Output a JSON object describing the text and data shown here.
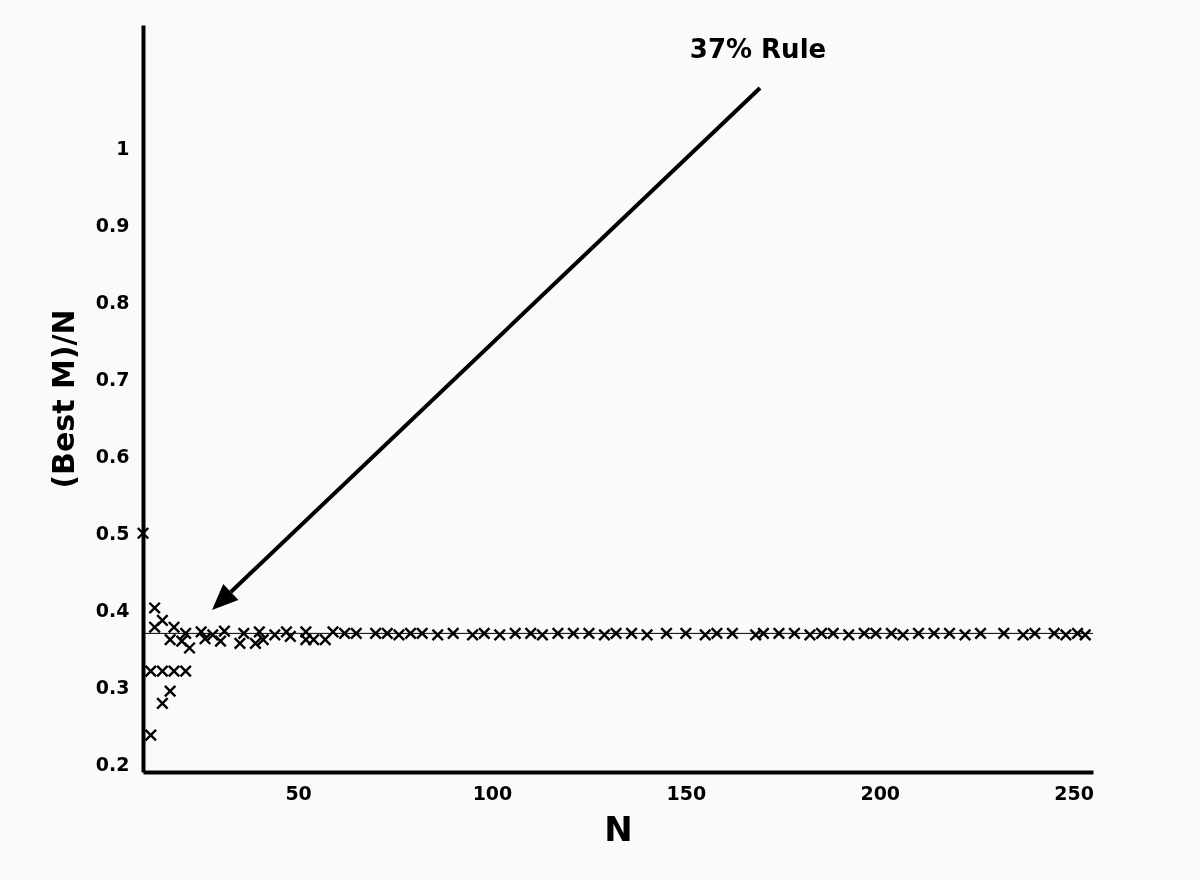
{
  "chart_data": {
    "type": "scatter",
    "xlabel": "N",
    "ylabel": "(Best M)/N",
    "xlim": [
      10,
      255
    ],
    "ylim": [
      0.19,
      1.16
    ],
    "xticks": [
      50,
      100,
      150,
      200,
      250
    ],
    "yticks": [
      0.2,
      0.3,
      0.4,
      0.5,
      0.6,
      0.7,
      0.8,
      0.9,
      1
    ],
    "grid": false,
    "marker": "cross",
    "ref_lines": [
      {
        "axis": "y",
        "value": 0.37,
        "color": "#000000"
      }
    ],
    "annotations": [
      "37% Rule"
    ],
    "x": [
      10,
      12,
      12,
      13,
      13,
      15,
      15,
      15,
      17,
      17,
      18,
      18,
      20,
      21,
      21,
      22,
      25,
      26,
      28,
      30,
      31,
      35,
      36,
      39,
      40,
      41,
      44,
      47,
      48,
      52,
      52,
      54,
      57,
      59,
      62,
      65,
      70,
      73,
      76,
      79,
      82,
      86,
      90,
      95,
      98,
      102,
      106,
      110,
      113,
      117,
      121,
      125,
      129,
      132,
      136,
      140,
      145,
      150,
      155,
      158,
      162,
      168,
      170,
      174,
      178,
      182,
      185,
      188,
      192,
      196,
      199,
      203,
      206,
      210,
      214,
      218,
      222,
      226,
      232,
      237,
      240,
      245,
      248,
      251,
      253
    ],
    "series": [
      {
        "color": "#000000",
        "values": [
          0.5,
          0.238,
          0.321,
          0.403,
          0.378,
          0.321,
          0.387,
          0.279,
          0.295,
          0.362,
          0.321,
          0.378,
          0.36,
          0.321,
          0.37,
          0.351,
          0.372,
          0.363,
          0.368,
          0.36,
          0.373,
          0.357,
          0.37,
          0.357,
          0.372,
          0.362,
          0.368,
          0.372,
          0.366,
          0.372,
          0.362,
          0.362,
          0.362,
          0.372,
          0.37,
          0.37,
          0.37,
          0.37,
          0.368,
          0.37,
          0.37,
          0.368,
          0.37,
          0.368,
          0.37,
          0.368,
          0.37,
          0.37,
          0.368,
          0.37,
          0.37,
          0.37,
          0.368,
          0.37,
          0.37,
          0.368,
          0.37,
          0.37,
          0.368,
          0.37,
          0.37,
          0.368,
          0.37,
          0.37,
          0.37,
          0.368,
          0.37,
          0.37,
          0.368,
          0.37,
          0.37,
          0.37,
          0.368,
          0.37,
          0.37,
          0.37,
          0.368,
          0.37,
          0.37,
          0.368,
          0.37,
          0.37,
          0.368,
          0.37,
          0.368
        ]
      }
    ]
  }
}
